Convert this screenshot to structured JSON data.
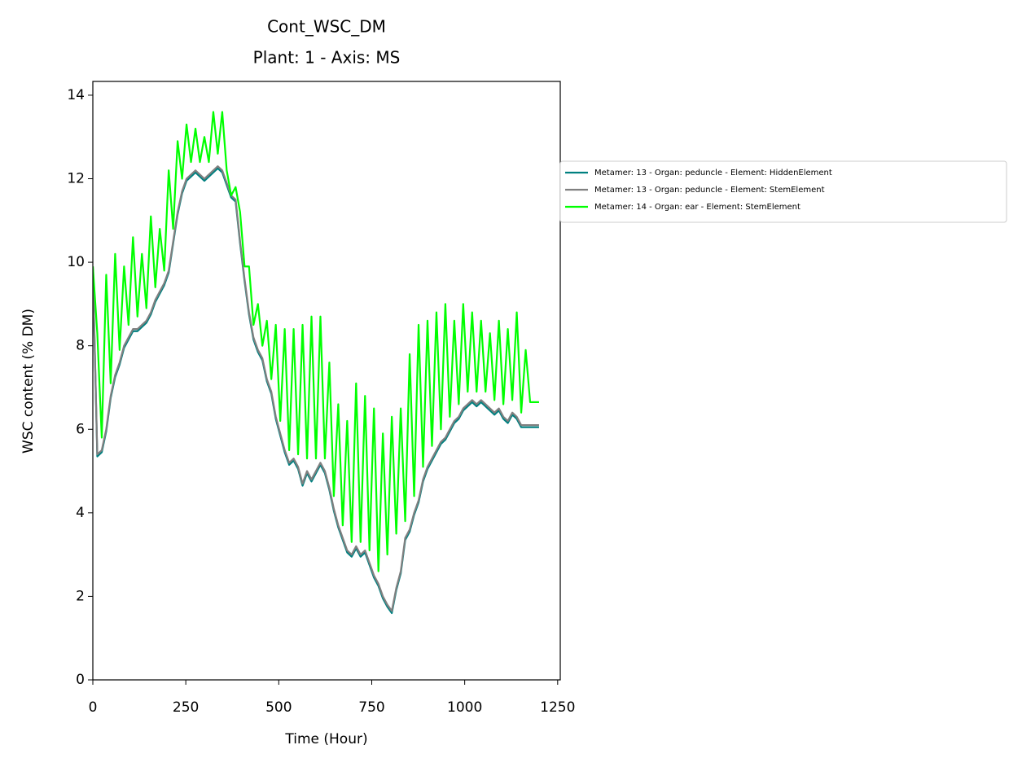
{
  "chart_data": {
    "type": "line",
    "title": "Cont_WSC_DM",
    "subtitle": "Plant: 1 - Axis: MS",
    "x_label": "Time (Hour)",
    "y_label": "WSC content (% DM)",
    "xlim": [
      0,
      1257
    ],
    "xticks": [
      0,
      250,
      500,
      750,
      1000,
      1250
    ],
    "ylim": [
      0,
      14.33
    ],
    "yticks": [
      0,
      2,
      4,
      6,
      8,
      10,
      12,
      14
    ],
    "legend": "right",
    "x": [
      0,
      12,
      24,
      36,
      48,
      60,
      72,
      84,
      96,
      108,
      120,
      132,
      144,
      156,
      168,
      180,
      192,
      204,
      216,
      228,
      240,
      252,
      264,
      276,
      288,
      300,
      312,
      324,
      336,
      348,
      360,
      372,
      384,
      396,
      408,
      420,
      432,
      444,
      456,
      468,
      480,
      492,
      504,
      516,
      528,
      540,
      552,
      564,
      576,
      588,
      600,
      612,
      624,
      636,
      648,
      660,
      672,
      684,
      696,
      708,
      720,
      732,
      744,
      756,
      768,
      780,
      792,
      804,
      816,
      828,
      840,
      852,
      864,
      876,
      888,
      900,
      912,
      924,
      936,
      948,
      960,
      972,
      984,
      996,
      1008,
      1020,
      1032,
      1044,
      1056,
      1068,
      1080,
      1092,
      1104,
      1116,
      1128,
      1140,
      1152,
      1164,
      1176,
      1188,
      1200
    ],
    "series": [
      {
        "name": "Metamer: 13 - Organ: peduncle - Element: HiddenElement",
        "color": "#008080",
        "values": [
          9.85,
          5.35,
          5.45,
          5.95,
          6.75,
          7.25,
          7.55,
          7.95,
          8.15,
          8.35,
          8.35,
          8.45,
          8.55,
          8.75,
          9.05,
          9.25,
          9.45,
          9.75,
          10.45,
          11.15,
          11.65,
          11.95,
          12.05,
          12.15,
          12.05,
          11.95,
          12.05,
          12.15,
          12.25,
          12.15,
          11.85,
          11.55,
          11.45,
          10.45,
          9.55,
          8.75,
          8.15,
          7.85,
          7.65,
          7.15,
          6.85,
          6.25,
          5.85,
          5.45,
          5.15,
          5.25,
          5.05,
          4.65,
          4.95,
          4.75,
          4.95,
          5.15,
          4.95,
          4.55,
          4.05,
          3.65,
          3.35,
          3.05,
          2.95,
          3.15,
          2.95,
          3.05,
          2.75,
          2.45,
          2.25,
          1.95,
          1.75,
          1.6,
          2.15,
          2.55,
          3.35,
          3.55,
          3.95,
          4.25,
          4.75,
          5.05,
          5.25,
          5.45,
          5.65,
          5.75,
          5.95,
          6.15,
          6.25,
          6.45,
          6.55,
          6.65,
          6.55,
          6.65,
          6.55,
          6.45,
          6.35,
          6.45,
          6.25,
          6.15,
          6.35,
          6.25,
          6.05,
          6.05,
          6.05,
          6.05,
          6.05
        ]
      },
      {
        "name": "Metamer: 13 - Organ: peduncle - Element: StemElement",
        "color": "#808080",
        "values": [
          9.9,
          5.4,
          5.5,
          6.0,
          6.8,
          7.3,
          7.6,
          8.0,
          8.2,
          8.4,
          8.4,
          8.5,
          8.6,
          8.8,
          9.1,
          9.3,
          9.5,
          9.8,
          10.5,
          11.2,
          11.7,
          12.0,
          12.1,
          12.2,
          12.1,
          12.0,
          12.1,
          12.2,
          12.3,
          12.2,
          11.9,
          11.6,
          11.5,
          10.5,
          9.6,
          8.8,
          8.2,
          7.9,
          7.7,
          7.2,
          6.9,
          6.3,
          5.9,
          5.5,
          5.2,
          5.3,
          5.1,
          4.7,
          5.0,
          4.8,
          5.0,
          5.2,
          5.0,
          4.6,
          4.1,
          3.7,
          3.4,
          3.1,
          3.0,
          3.2,
          3.0,
          3.1,
          2.8,
          2.5,
          2.3,
          2.0,
          1.8,
          1.65,
          2.2,
          2.6,
          3.4,
          3.6,
          4.0,
          4.3,
          4.8,
          5.1,
          5.3,
          5.5,
          5.7,
          5.8,
          6.0,
          6.2,
          6.3,
          6.5,
          6.6,
          6.7,
          6.6,
          6.7,
          6.6,
          6.5,
          6.4,
          6.5,
          6.3,
          6.2,
          6.4,
          6.3,
          6.1,
          6.1,
          6.1,
          6.1,
          6.1
        ]
      },
      {
        "name": "Metamer: 14 - Organ: ear - Element: StemElement",
        "color": "#00ff00",
        "values": [
          9.9,
          8.3,
          5.8,
          9.7,
          7.1,
          10.2,
          7.9,
          9.9,
          8.5,
          10.6,
          8.7,
          10.2,
          8.9,
          11.1,
          9.4,
          10.8,
          9.8,
          12.2,
          10.8,
          12.9,
          12.0,
          13.3,
          12.4,
          13.2,
          12.4,
          13.0,
          12.4,
          13.6,
          12.6,
          13.6,
          12.2,
          11.6,
          11.8,
          11.2,
          9.9,
          9.9,
          8.5,
          9.0,
          8.0,
          8.6,
          7.2,
          8.5,
          6.2,
          8.4,
          5.5,
          8.4,
          5.4,
          8.5,
          5.3,
          8.7,
          5.3,
          8.7,
          5.3,
          7.6,
          4.4,
          6.6,
          3.7,
          6.2,
          3.3,
          7.1,
          3.3,
          6.8,
          3.1,
          6.5,
          2.6,
          5.9,
          3.0,
          6.3,
          3.5,
          6.5,
          3.8,
          7.8,
          4.4,
          8.5,
          5.1,
          8.6,
          5.6,
          8.8,
          6.0,
          9.0,
          6.3,
          8.6,
          6.6,
          9.0,
          6.9,
          8.8,
          6.9,
          8.6,
          6.9,
          8.3,
          6.7,
          8.6,
          6.6,
          8.4,
          6.7,
          8.8,
          6.4,
          7.9,
          6.65,
          6.65,
          6.65
        ]
      }
    ]
  }
}
